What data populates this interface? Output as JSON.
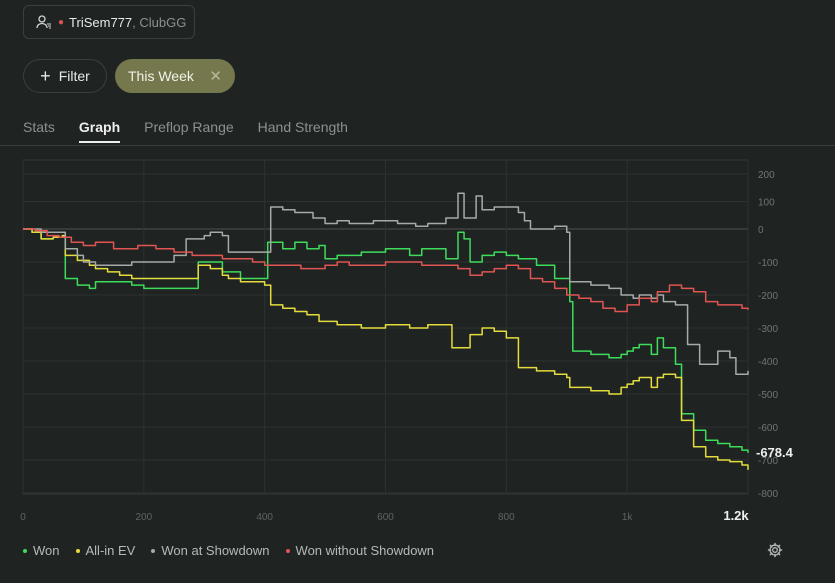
{
  "player": {
    "name": "TriSem777",
    "site": ", ClubGG",
    "icon": "user-filter-icon",
    "status_color": "#d9534f"
  },
  "filters": {
    "add_label": "Filter",
    "active_label": "This Week",
    "remove_icon": "close-icon"
  },
  "tabs": [
    {
      "label": "Stats",
      "active": false
    },
    {
      "label": "Graph",
      "active": true
    },
    {
      "label": "Preflop Range",
      "active": false
    },
    {
      "label": "Hand Strength",
      "active": false
    }
  ],
  "settings_icon": "gear-icon",
  "chart_data": {
    "type": "line",
    "x_ticks": [
      {
        "value": 0,
        "label": "0"
      },
      {
        "value": 200,
        "label": "200"
      },
      {
        "value": 400,
        "label": "400"
      },
      {
        "value": 600,
        "label": "600"
      },
      {
        "value": 800,
        "label": "800"
      },
      {
        "value": 1000,
        "label": "1k"
      },
      {
        "value": 1200,
        "label": "1.2k"
      }
    ],
    "y_ticks": [
      200,
      100,
      0,
      -100,
      -200,
      -300,
      -400,
      -500,
      -600,
      -700,
      -800
    ],
    "xlim": [
      0,
      1200
    ],
    "ylim": [
      -820,
      220
    ],
    "last_value_label": "-678.4",
    "grid": true,
    "legend_position": "bottom-left",
    "series": [
      {
        "name": "Won",
        "color": "#3ddc5a",
        "points": [
          [
            0,
            0
          ],
          [
            15,
            -10
          ],
          [
            30,
            -30
          ],
          [
            50,
            -25
          ],
          [
            65,
            -20
          ],
          [
            70,
            -150
          ],
          [
            90,
            -170
          ],
          [
            110,
            -180
          ],
          [
            120,
            -160
          ],
          [
            140,
            -160
          ],
          [
            160,
            -160
          ],
          [
            180,
            -170
          ],
          [
            200,
            -180
          ],
          [
            250,
            -180
          ],
          [
            290,
            -100
          ],
          [
            310,
            -100
          ],
          [
            330,
            -130
          ],
          [
            340,
            -130
          ],
          [
            360,
            -150
          ],
          [
            400,
            -150
          ],
          [
            405,
            -40
          ],
          [
            430,
            -60
          ],
          [
            450,
            -40
          ],
          [
            470,
            -60
          ],
          [
            490,
            -50
          ],
          [
            500,
            -90
          ],
          [
            520,
            -80
          ],
          [
            540,
            -80
          ],
          [
            560,
            -70
          ],
          [
            600,
            -60
          ],
          [
            640,
            -80
          ],
          [
            660,
            -60
          ],
          [
            680,
            -60
          ],
          [
            700,
            -90
          ],
          [
            720,
            -10
          ],
          [
            730,
            -30
          ],
          [
            740,
            -100
          ],
          [
            760,
            -80
          ],
          [
            780,
            -70
          ],
          [
            800,
            -80
          ],
          [
            820,
            -90
          ],
          [
            850,
            -110
          ],
          [
            880,
            -150
          ],
          [
            905,
            -220
          ],
          [
            910,
            -370
          ],
          [
            940,
            -380
          ],
          [
            970,
            -390
          ],
          [
            990,
            -380
          ],
          [
            1000,
            -370
          ],
          [
            1010,
            -360
          ],
          [
            1020,
            -350
          ],
          [
            1040,
            -380
          ],
          [
            1050,
            -330
          ],
          [
            1060,
            -360
          ],
          [
            1080,
            -410
          ],
          [
            1090,
            -560
          ],
          [
            1110,
            -610
          ],
          [
            1130,
            -640
          ],
          [
            1150,
            -650
          ],
          [
            1170,
            -660
          ],
          [
            1190,
            -670
          ],
          [
            1200,
            -678.4
          ]
        ]
      },
      {
        "name": "All-in EV",
        "color": "#e4dc3c",
        "points": [
          [
            0,
            0
          ],
          [
            15,
            -10
          ],
          [
            30,
            -30
          ],
          [
            50,
            -25
          ],
          [
            65,
            -20
          ],
          [
            70,
            -80
          ],
          [
            90,
            -95
          ],
          [
            110,
            -110
          ],
          [
            120,
            -120
          ],
          [
            140,
            -130
          ],
          [
            160,
            -140
          ],
          [
            180,
            -150
          ],
          [
            200,
            -150
          ],
          [
            250,
            -150
          ],
          [
            290,
            -110
          ],
          [
            310,
            -120
          ],
          [
            330,
            -140
          ],
          [
            340,
            -150
          ],
          [
            360,
            -160
          ],
          [
            400,
            -170
          ],
          [
            410,
            -230
          ],
          [
            430,
            -240
          ],
          [
            450,
            -250
          ],
          [
            470,
            -260
          ],
          [
            490,
            -280
          ],
          [
            520,
            -290
          ],
          [
            560,
            -300
          ],
          [
            600,
            -290
          ],
          [
            640,
            -300
          ],
          [
            670,
            -290
          ],
          [
            700,
            -290
          ],
          [
            710,
            -360
          ],
          [
            740,
            -320
          ],
          [
            760,
            -300
          ],
          [
            780,
            -310
          ],
          [
            800,
            -330
          ],
          [
            820,
            -420
          ],
          [
            850,
            -430
          ],
          [
            880,
            -440
          ],
          [
            900,
            -450
          ],
          [
            905,
            -480
          ],
          [
            940,
            -490
          ],
          [
            970,
            -500
          ],
          [
            990,
            -480
          ],
          [
            1000,
            -470
          ],
          [
            1010,
            -460
          ],
          [
            1020,
            -450
          ],
          [
            1040,
            -480
          ],
          [
            1050,
            -450
          ],
          [
            1060,
            -440
          ],
          [
            1080,
            -450
          ],
          [
            1090,
            -580
          ],
          [
            1110,
            -660
          ],
          [
            1130,
            -690
          ],
          [
            1150,
            -700
          ],
          [
            1170,
            -705
          ],
          [
            1190,
            -715
          ],
          [
            1200,
            -730
          ]
        ]
      },
      {
        "name": "Won at Showdown",
        "color": "#a6aaa8",
        "points": [
          [
            0,
            0
          ],
          [
            30,
            -10
          ],
          [
            60,
            -10
          ],
          [
            70,
            -60
          ],
          [
            90,
            -80
          ],
          [
            100,
            -100
          ],
          [
            120,
            -110
          ],
          [
            150,
            -110
          ],
          [
            170,
            -110
          ],
          [
            180,
            -100
          ],
          [
            200,
            -100
          ],
          [
            240,
            -100
          ],
          [
            250,
            -80
          ],
          [
            270,
            -30
          ],
          [
            290,
            -30
          ],
          [
            300,
            -20
          ],
          [
            310,
            -10
          ],
          [
            330,
            -20
          ],
          [
            340,
            -70
          ],
          [
            370,
            -70
          ],
          [
            410,
            80
          ],
          [
            430,
            70
          ],
          [
            450,
            60
          ],
          [
            480,
            40
          ],
          [
            500,
            20
          ],
          [
            520,
            30
          ],
          [
            540,
            20
          ],
          [
            580,
            30
          ],
          [
            620,
            20
          ],
          [
            650,
            10
          ],
          [
            670,
            20
          ],
          [
            700,
            40
          ],
          [
            720,
            130
          ],
          [
            730,
            40
          ],
          [
            750,
            120
          ],
          [
            760,
            70
          ],
          [
            780,
            80
          ],
          [
            820,
            60
          ],
          [
            830,
            30
          ],
          [
            840,
            0
          ],
          [
            880,
            10
          ],
          [
            900,
            -10
          ],
          [
            905,
            -160
          ],
          [
            940,
            -170
          ],
          [
            970,
            -180
          ],
          [
            990,
            -200
          ],
          [
            1010,
            -210
          ],
          [
            1020,
            -200
          ],
          [
            1040,
            -210
          ],
          [
            1050,
            -200
          ],
          [
            1060,
            -220
          ],
          [
            1080,
            -230
          ],
          [
            1100,
            -350
          ],
          [
            1120,
            -410
          ],
          [
            1130,
            -410
          ],
          [
            1150,
            -370
          ],
          [
            1170,
            -390
          ],
          [
            1180,
            -440
          ],
          [
            1190,
            -440
          ],
          [
            1200,
            -430
          ]
        ]
      },
      {
        "name": "Won without Showdown",
        "color": "#e05451",
        "points": [
          [
            0,
            0
          ],
          [
            20,
            -5
          ],
          [
            40,
            -20
          ],
          [
            60,
            -25
          ],
          [
            80,
            -40
          ],
          [
            100,
            -50
          ],
          [
            120,
            -40
          ],
          [
            150,
            -60
          ],
          [
            170,
            -60
          ],
          [
            190,
            -50
          ],
          [
            220,
            -60
          ],
          [
            250,
            -70
          ],
          [
            280,
            -80
          ],
          [
            300,
            -80
          ],
          [
            330,
            -90
          ],
          [
            360,
            -90
          ],
          [
            380,
            -100
          ],
          [
            400,
            -110
          ],
          [
            420,
            -110
          ],
          [
            440,
            -110
          ],
          [
            460,
            -120
          ],
          [
            480,
            -120
          ],
          [
            500,
            -110
          ],
          [
            520,
            -100
          ],
          [
            540,
            -110
          ],
          [
            570,
            -110
          ],
          [
            600,
            -100
          ],
          [
            630,
            -100
          ],
          [
            660,
            -110
          ],
          [
            700,
            -110
          ],
          [
            720,
            -120
          ],
          [
            740,
            -140
          ],
          [
            760,
            -130
          ],
          [
            780,
            -120
          ],
          [
            800,
            -110
          ],
          [
            820,
            -120
          ],
          [
            840,
            -150
          ],
          [
            860,
            -160
          ],
          [
            880,
            -180
          ],
          [
            900,
            -200
          ],
          [
            920,
            -210
          ],
          [
            940,
            -220
          ],
          [
            960,
            -240
          ],
          [
            980,
            -250
          ],
          [
            1000,
            -230
          ],
          [
            1020,
            -210
          ],
          [
            1040,
            -220
          ],
          [
            1050,
            -190
          ],
          [
            1070,
            -170
          ],
          [
            1090,
            -180
          ],
          [
            1110,
            -190
          ],
          [
            1130,
            -220
          ],
          [
            1150,
            -230
          ],
          [
            1170,
            -230
          ],
          [
            1190,
            -240
          ],
          [
            1200,
            -245
          ]
        ]
      }
    ]
  }
}
